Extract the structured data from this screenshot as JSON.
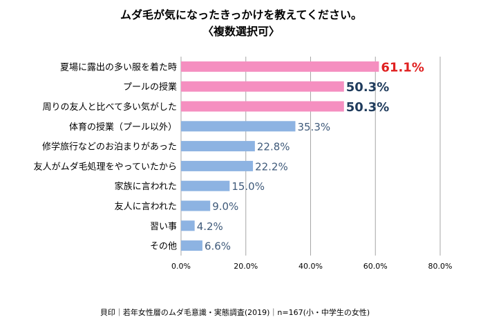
{
  "chart_data": {
    "type": "bar",
    "orientation": "horizontal",
    "title": "ムダ毛が気になったきっかけを教えてください。",
    "subtitle": "〈複数選択可〉",
    "categories": [
      "夏場に露出の多い服を着た時",
      "プールの授業",
      "周りの友人と比べて多い気がした",
      "体育の授業（プール以外）",
      "修学旅行などのお泊まりがあった",
      "友人がムダ毛処理をやっていたから",
      "家族に言われた",
      "友人に言われた",
      "習い事",
      "その他"
    ],
    "values": [
      61.1,
      50.3,
      50.3,
      35.3,
      22.8,
      22.2,
      15.0,
      9.0,
      4.2,
      6.6
    ],
    "value_labels": [
      "61.1%",
      "50.3%",
      "50.3%",
      "35.3%",
      "22.8%",
      "22.2%",
      "15.0%",
      "9.0%",
      "4.2%",
      "6.6%"
    ],
    "highlighted": [
      true,
      true,
      true,
      false,
      false,
      false,
      false,
      false,
      false,
      false
    ],
    "xlim": [
      0,
      80
    ],
    "x_ticks": [
      0,
      20,
      40,
      60,
      80
    ],
    "x_tick_labels": [
      "0.0%",
      "20.0%",
      "40.0%",
      "60.0%",
      "80.0%"
    ],
    "grid": "vertical",
    "legend": "none",
    "xlabel": "",
    "ylabel": "",
    "source_note": "貝印｜若年女性層のムダ毛意識・実態調査(2019)｜n=167(小・中学生の女性)",
    "colors": {
      "highlight_bar": "#f58fc0",
      "normal_bar": "#8db3e2",
      "top_value_label": "#e02020",
      "emph_value_label": "#1f3b5c",
      "normal_value_label": "#3f5a7a",
      "grid": "#a6a6a6"
    }
  }
}
